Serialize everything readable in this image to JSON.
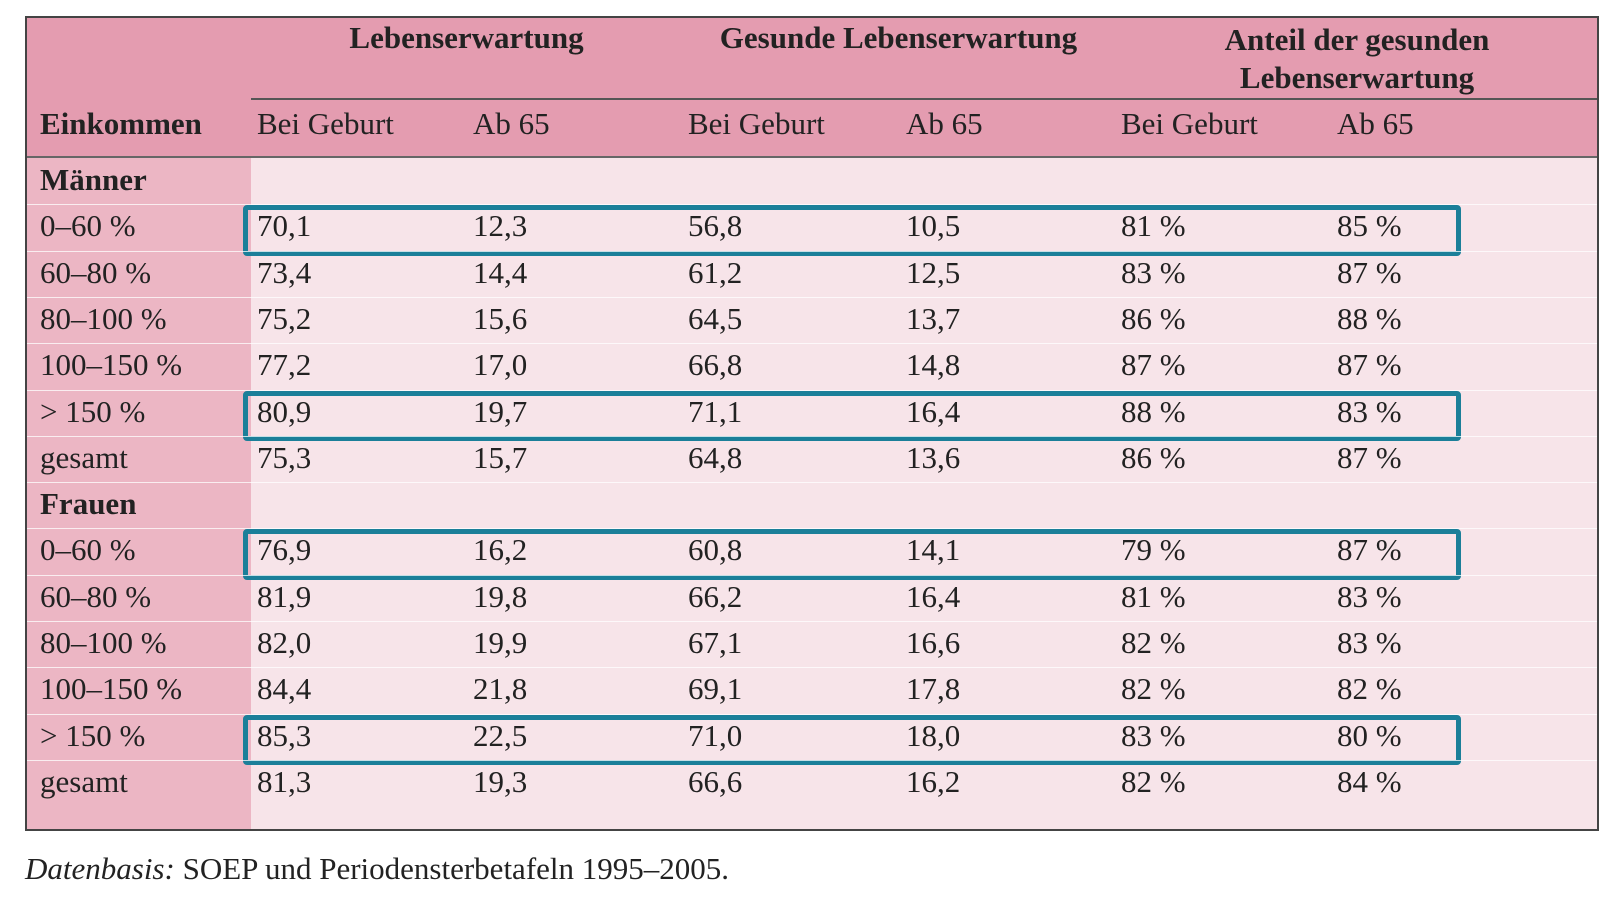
{
  "table": {
    "group_headers": [
      "Lebenserwartung",
      "Gesunde Lebenserwartung",
      "Anteil der gesunden Lebenserwartung"
    ],
    "row_header_label": "Einkommen",
    "sub_headers": [
      "Bei Geburt",
      "Ab 65",
      "Bei Geburt",
      "Ab 65",
      "Bei Geburt",
      "Ab 65"
    ],
    "sections": [
      {
        "title": "Männer",
        "rows": [
          {
            "label": "0–60 %",
            "values": [
              "70,1",
              "12,3",
              "56,8",
              "10,5",
              "81 %",
              "85 %"
            ],
            "highlighted": true
          },
          {
            "label": "60–80 %",
            "values": [
              "73,4",
              "14,4",
              "61,2",
              "12,5",
              "83 %",
              "87 %"
            ],
            "highlighted": false
          },
          {
            "label": "80–100 %",
            "values": [
              "75,2",
              "15,6",
              "64,5",
              "13,7",
              "86 %",
              "88 %"
            ],
            "highlighted": false
          },
          {
            "label": "100–150 %",
            "values": [
              "77,2",
              "17,0",
              "66,8",
              "14,8",
              "87 %",
              "87 %"
            ],
            "highlighted": false
          },
          {
            "label": "> 150 %",
            "values": [
              "80,9",
              "19,7",
              "71,1",
              "16,4",
              "88 %",
              "83 %"
            ],
            "highlighted": true
          },
          {
            "label": "gesamt",
            "values": [
              "75,3",
              "15,7",
              "64,8",
              "13,6",
              "86 %",
              "87 %"
            ],
            "highlighted": false
          }
        ]
      },
      {
        "title": "Frauen",
        "rows": [
          {
            "label": "0–60 %",
            "values": [
              "76,9",
              "16,2",
              "60,8",
              "14,1",
              "79 %",
              "87 %"
            ],
            "highlighted": true
          },
          {
            "label": "60–80 %",
            "values": [
              "81,9",
              "19,8",
              "66,2",
              "16,4",
              "81 %",
              "83 %"
            ],
            "highlighted": false
          },
          {
            "label": "80–100 %",
            "values": [
              "82,0",
              "19,9",
              "67,1",
              "16,6",
              "82 %",
              "83 %"
            ],
            "highlighted": false
          },
          {
            "label": "100–150 %",
            "values": [
              "84,4",
              "21,8",
              "69,1",
              "17,8",
              "82 %",
              "82 %"
            ],
            "highlighted": false
          },
          {
            "label": "> 150 %",
            "values": [
              "85,3",
              "22,5",
              "71,0",
              "18,0",
              "83 %",
              "80 %"
            ],
            "highlighted": true
          },
          {
            "label": "gesamt",
            "values": [
              "81,3",
              "19,3",
              "66,6",
              "16,2",
              "82 %",
              "84 %"
            ],
            "highlighted": false
          }
        ]
      }
    ]
  },
  "caption": {
    "label": "Datenbasis:",
    "text": " SOEP und Periodensterbetafeln 1995–2005."
  },
  "colors": {
    "header_bg": "#e49cb0",
    "first_col_bg": "#ecb6c4",
    "body_bg": "#f7e4e9",
    "highlight_border": "#1b7f99"
  }
}
